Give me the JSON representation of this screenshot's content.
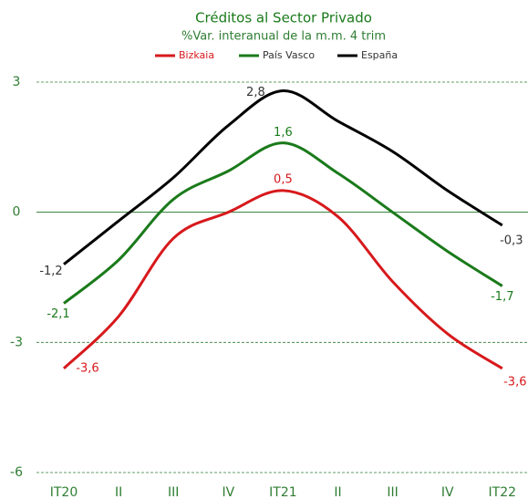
{
  "chart_data": {
    "type": "line",
    "title": "Créditos al Sector Privado",
    "subtitle": "%Var. interanual de la m.m. 4 trim",
    "categories": [
      "IT20",
      "II",
      "III",
      "IV",
      "IT21",
      "II",
      "III",
      "IV",
      "IT22"
    ],
    "series": [
      {
        "name": "Bizkaia",
        "color": "#d7191c",
        "values": [
          -3.6,
          -2.4,
          -0.6,
          0,
          0.5,
          -0.1,
          -1.6,
          -2.8,
          -3.6
        ],
        "value_labels": [
          "-3,6",
          null,
          null,
          null,
          "0,5",
          null,
          null,
          null,
          "-3,6"
        ]
      },
      {
        "name": "País Vasco",
        "color": "#1a7a1a",
        "values": [
          -2.1,
          -1.1,
          0.3,
          0.95,
          1.6,
          0.9,
          0,
          -0.9,
          -1.7
        ],
        "value_labels": [
          "-2,1",
          null,
          null,
          null,
          "1,6",
          null,
          null,
          null,
          "-1,7"
        ]
      },
      {
        "name": "España",
        "color": "#000000",
        "values": [
          -1.2,
          -0.2,
          0.8,
          2.0,
          2.8,
          2.1,
          1.4,
          0.5,
          -0.3
        ],
        "value_labels": [
          "-1,2",
          null,
          null,
          null,
          "2,8",
          null,
          null,
          null,
          "-0,3"
        ]
      }
    ],
    "ylim": [
      -6,
      3
    ],
    "yticks": [
      -6,
      -3,
      0,
      3
    ],
    "grid": true,
    "legend": "top"
  }
}
